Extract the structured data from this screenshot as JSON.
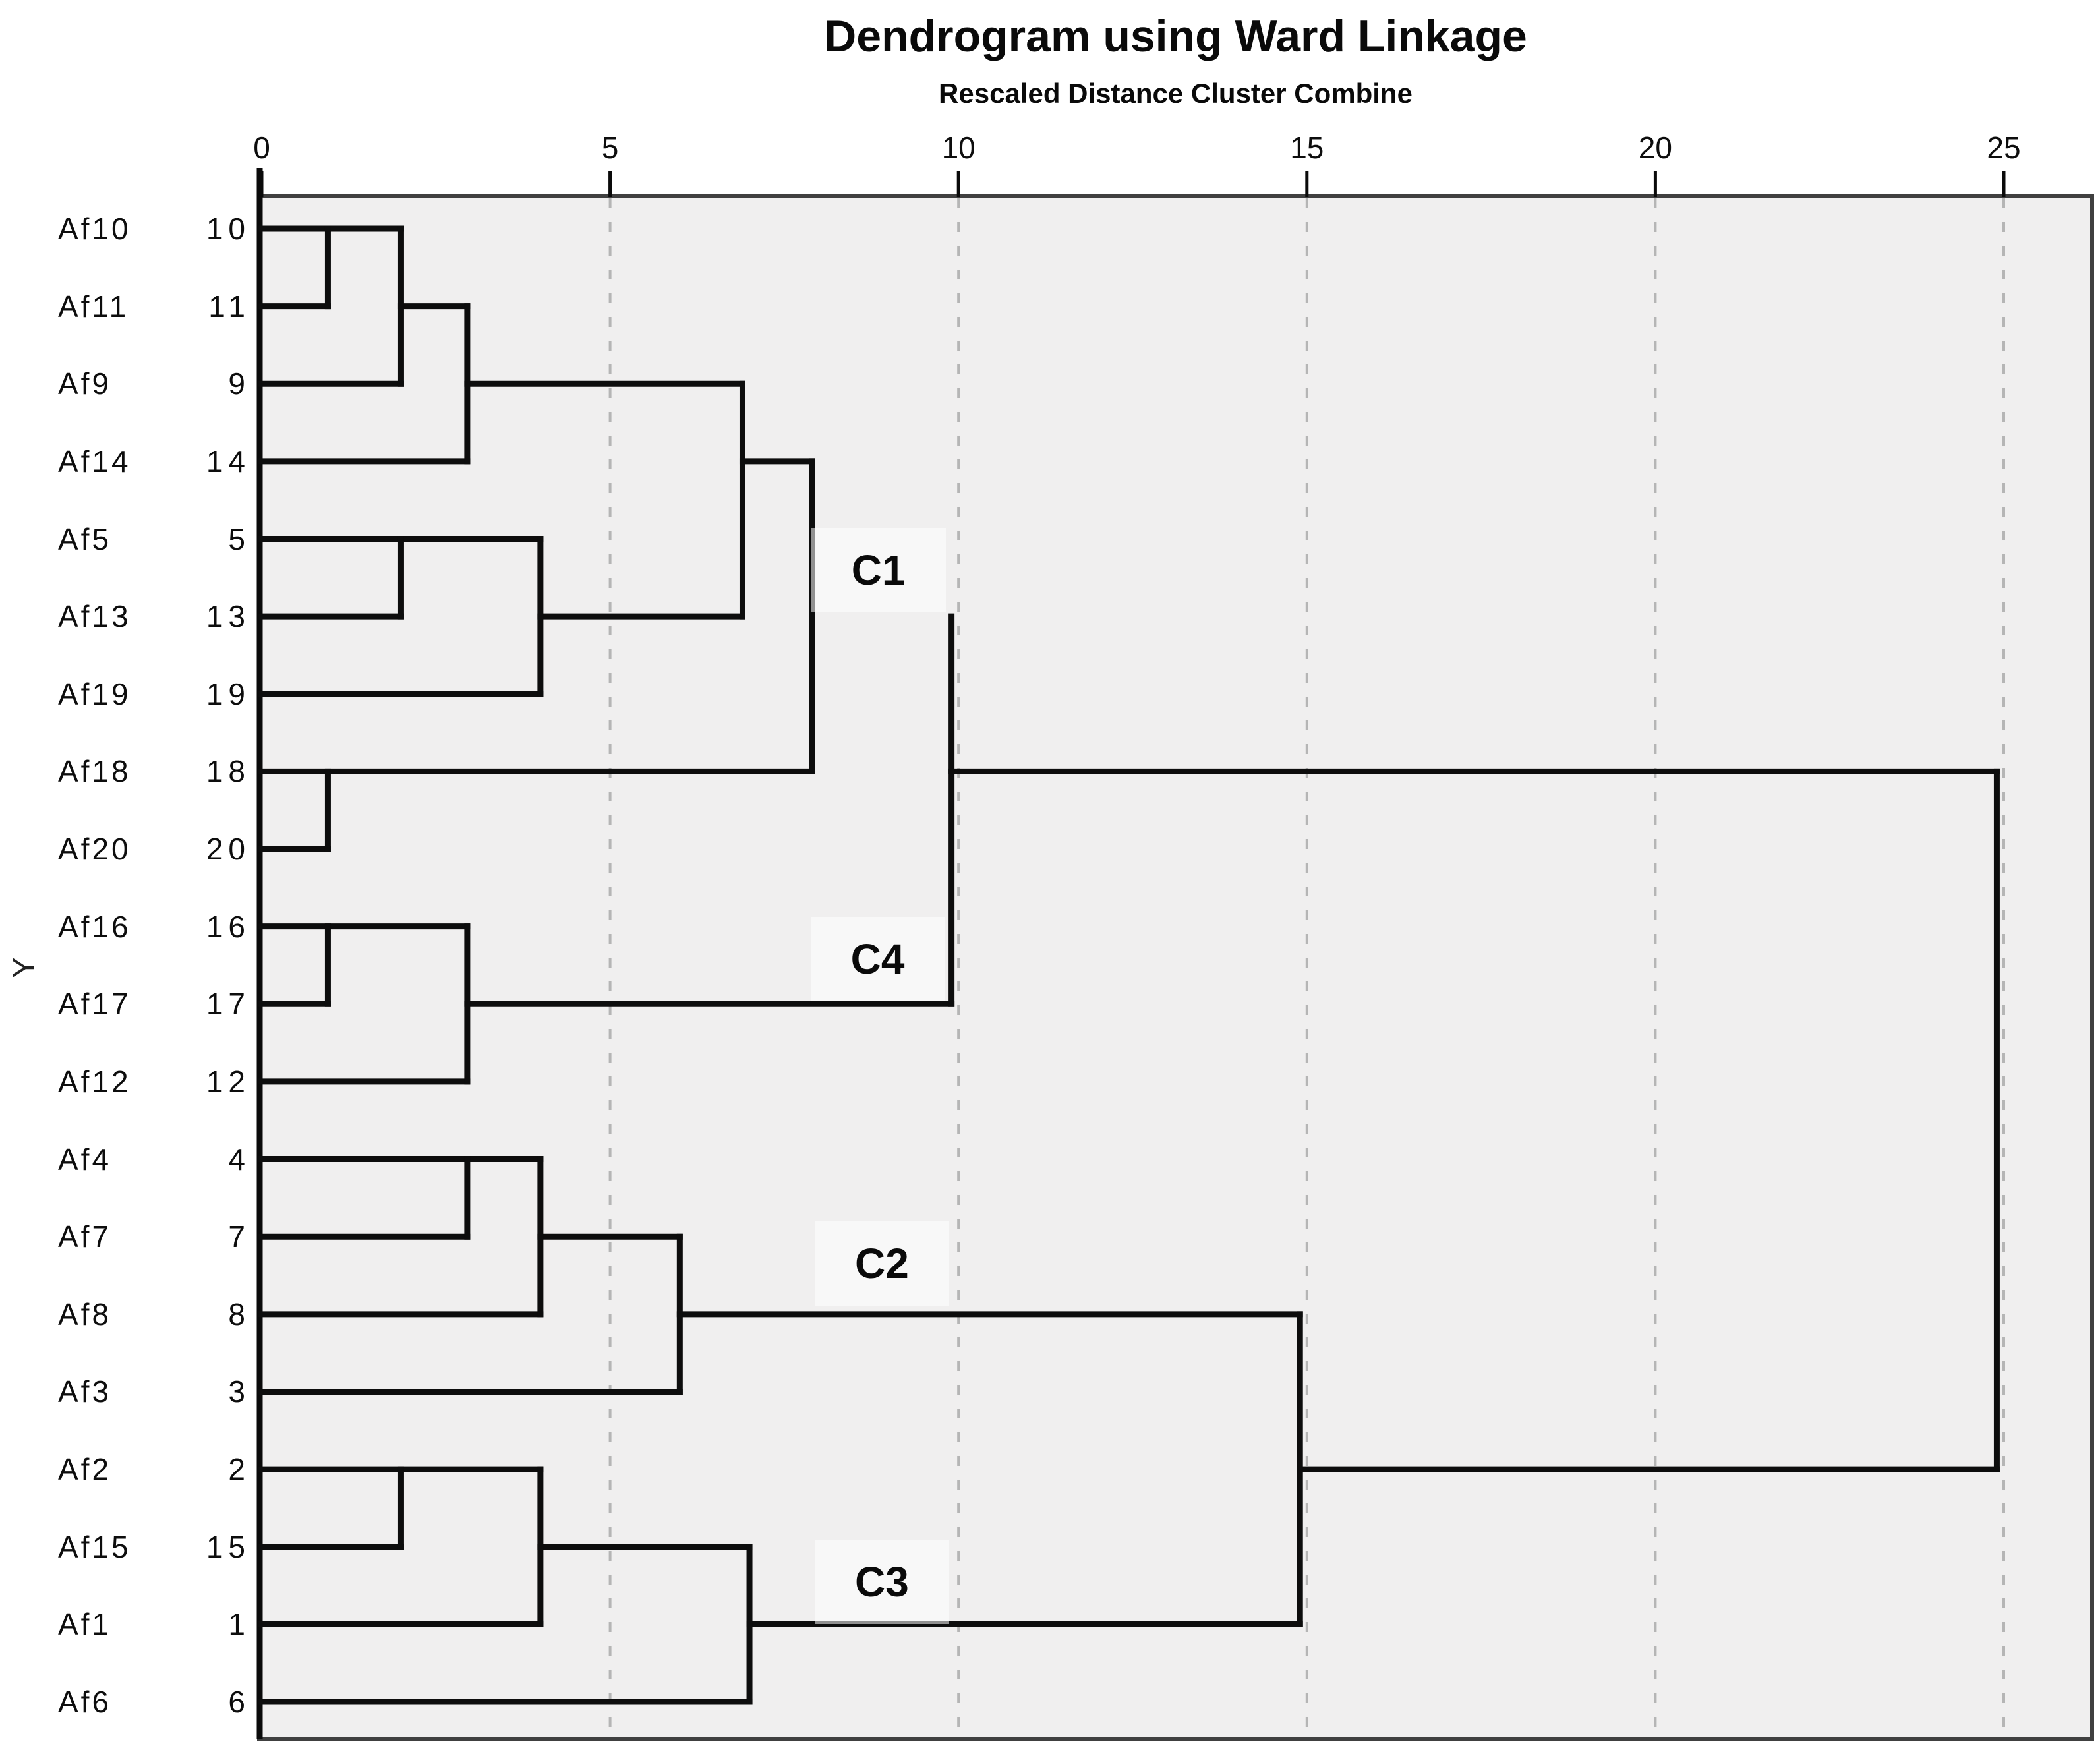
{
  "title": "Dendrogram using Ward Linkage",
  "subtitle": "Rescaled Distance Cluster Combine",
  "y_axis_label": "Y",
  "chart_data": {
    "type": "dendrogram",
    "linkage": "Ward",
    "orientation": "horizontal, leaves on left, root at right",
    "x_axis": {
      "title": "Rescaled Distance Cluster Combine",
      "range": [
        0,
        25
      ],
      "ticks": [
        0,
        5,
        10,
        15,
        20,
        25
      ],
      "gridlines_at": [
        5,
        10,
        15,
        20,
        25
      ],
      "gridline_style": "dashed"
    },
    "leaves": [
      {
        "label": "Af10",
        "case": "10"
      },
      {
        "label": "Af11",
        "case": "11"
      },
      {
        "label": "Af9",
        "case": "9"
      },
      {
        "label": "Af14",
        "case": "14"
      },
      {
        "label": "Af5",
        "case": "5"
      },
      {
        "label": "Af13",
        "case": "13"
      },
      {
        "label": "Af19",
        "case": "19"
      },
      {
        "label": "Af18",
        "case": "18"
      },
      {
        "label": "Af20",
        "case": "20"
      },
      {
        "label": "Af16",
        "case": "16"
      },
      {
        "label": "Af17",
        "case": "17"
      },
      {
        "label": "Af12",
        "case": "12"
      },
      {
        "label": "Af4",
        "case": "4"
      },
      {
        "label": "Af7",
        "case": "7"
      },
      {
        "label": "Af8",
        "case": "8"
      },
      {
        "label": "Af3",
        "case": "3"
      },
      {
        "label": "Af2",
        "case": "2"
      },
      {
        "label": "Af15",
        "case": "15"
      },
      {
        "label": "Af1",
        "case": "1"
      },
      {
        "label": "Af6",
        "case": "6"
      }
    ],
    "merges": [
      {
        "members": [
          "Af10",
          "Af11"
        ],
        "distance": 0.95
      },
      {
        "members": [
          "Af10+Af11",
          "Af9"
        ],
        "distance": 2.0
      },
      {
        "members": [
          "Af10+Af11+Af9",
          "Af14"
        ],
        "distance": 2.95
      },
      {
        "members": [
          "Af5",
          "Af13"
        ],
        "distance": 2.0
      },
      {
        "members": [
          "Af5+Af13",
          "Af19"
        ],
        "distance": 4.0
      },
      {
        "members": [
          "Af10+Af11+Af9+Af14",
          "Af5+Af13+Af19"
        ],
        "distance": 6.9
      },
      {
        "members": [
          "Af18",
          "Af20"
        ],
        "distance": 0.95
      },
      {
        "members": [
          "Af10..Af19 group",
          "Af18+Af20"
        ],
        "distance": 7.9,
        "label": "C1"
      },
      {
        "members": [
          "Af16",
          "Af17"
        ],
        "distance": 0.95
      },
      {
        "members": [
          "Af16+Af17",
          "Af12"
        ],
        "distance": 2.95,
        "label": "C4"
      },
      {
        "members": [
          "C1",
          "C4"
        ],
        "distance": 9.9
      },
      {
        "members": [
          "Af4",
          "Af7"
        ],
        "distance": 2.95
      },
      {
        "members": [
          "Af4+Af7",
          "Af8"
        ],
        "distance": 4.0
      },
      {
        "members": [
          "Af4+Af7+Af8",
          "Af3"
        ],
        "distance": 6.0,
        "label": "C2"
      },
      {
        "members": [
          "Af2",
          "Af15"
        ],
        "distance": 2.0
      },
      {
        "members": [
          "Af2+Af15",
          "Af1"
        ],
        "distance": 4.0
      },
      {
        "members": [
          "Af2+Af15+Af1",
          "Af6"
        ],
        "distance": 7.0,
        "label": "C3"
      },
      {
        "members": [
          "C2",
          "C3"
        ],
        "distance": 14.9
      },
      {
        "members": [
          "C1+C4",
          "C2+C3"
        ],
        "distance": 24.9
      }
    ],
    "cluster_labels": [
      {
        "text": "C1",
        "x": 8.85,
        "row": 5.4
      },
      {
        "text": "C4",
        "x": 8.84,
        "row": 10.42
      },
      {
        "text": "C2",
        "x": 8.9,
        "row": 14.35
      },
      {
        "text": "C3",
        "x": 8.9,
        "row": 18.45
      }
    ],
    "segments": {
      "h": [
        [
          1,
          0,
          2
        ],
        [
          2,
          0,
          0.95
        ],
        [
          2,
          2,
          2.95
        ],
        [
          3,
          0,
          2
        ],
        [
          3,
          2.95,
          6.9
        ],
        [
          4,
          0,
          2.95
        ],
        [
          4,
          6.9,
          7.9
        ],
        [
          5,
          0,
          4
        ],
        [
          6,
          0,
          2
        ],
        [
          6,
          4,
          6.9
        ],
        [
          7,
          0,
          4
        ],
        [
          8,
          0,
          7.9
        ],
        [
          8,
          9.9,
          24.9
        ],
        [
          9,
          0,
          0.95
        ],
        [
          10,
          0,
          2.95
        ],
        [
          11,
          0,
          0.95
        ],
        [
          11,
          2.95,
          9.9
        ],
        [
          12,
          0,
          2.95
        ],
        [
          13,
          0,
          4
        ],
        [
          14,
          0,
          2.95
        ],
        [
          14,
          4,
          6
        ],
        [
          15,
          0,
          4
        ],
        [
          15,
          6,
          14.9
        ],
        [
          16,
          0,
          6
        ],
        [
          17,
          0,
          4
        ],
        [
          17,
          14.9,
          24.9
        ],
        [
          18,
          0,
          2
        ],
        [
          18,
          4,
          7
        ],
        [
          19,
          0,
          4
        ],
        [
          19,
          7,
          14.9
        ],
        [
          20,
          0,
          7
        ]
      ],
      "v": [
        [
          0.95,
          1,
          2
        ],
        [
          2,
          1,
          3
        ],
        [
          2.95,
          2,
          4
        ],
        [
          2,
          5,
          6
        ],
        [
          4,
          5,
          7
        ],
        [
          6.9,
          3,
          6
        ],
        [
          0.95,
          8,
          9
        ],
        [
          7.9,
          4,
          8
        ],
        [
          0.95,
          10,
          11
        ],
        [
          2.95,
          10,
          12
        ],
        [
          9.9,
          6,
          11
        ],
        [
          2.95,
          13,
          14
        ],
        [
          4,
          13,
          15
        ],
        [
          6,
          14,
          16
        ],
        [
          2,
          17,
          18
        ],
        [
          4,
          17,
          19
        ],
        [
          7,
          18,
          20
        ],
        [
          14.9,
          15,
          19
        ],
        [
          24.9,
          8,
          17
        ]
      ]
    },
    "colors": {
      "plot_background": "#f0efef",
      "line": "#0d0d0d",
      "frame": "#404040",
      "gridline": "#b5b5b5",
      "page_background": "#ffffff"
    }
  }
}
